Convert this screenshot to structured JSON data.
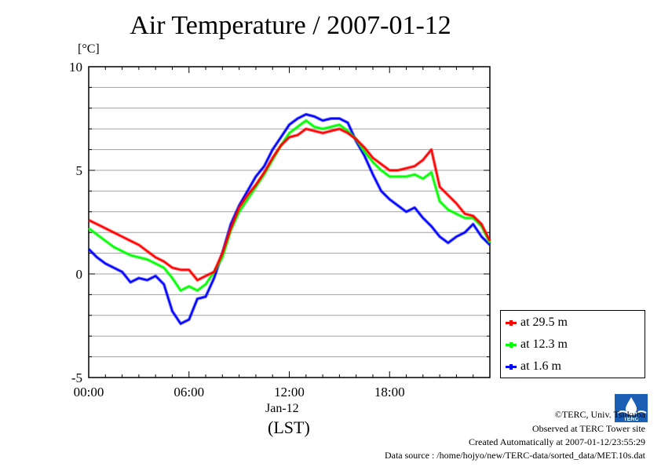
{
  "chart_data": {
    "type": "line",
    "title": "Air Temperature / 2007-01-12",
    "unit": "[°C]",
    "xlabel_date": "Jan-12",
    "xlabel": "(LST)",
    "xlim": [
      0,
      24
    ],
    "ylim": [
      -5,
      10
    ],
    "grid": true,
    "legend_position": "bottom-right",
    "x_ticks": [
      0,
      6,
      12,
      18
    ],
    "x_tick_labels": [
      "00:00",
      "06:00",
      "12:00",
      "18:00"
    ],
    "y_ticks": [
      -5,
      0,
      5,
      10
    ],
    "y_tick_labels": [
      "-5",
      "0",
      "5",
      "10"
    ],
    "x": [
      0,
      0.5,
      1,
      1.5,
      2,
      2.5,
      3,
      3.5,
      4,
      4.5,
      5,
      5.5,
      6,
      6.5,
      7,
      7.5,
      8,
      8.5,
      9,
      9.5,
      10,
      10.5,
      11,
      11.5,
      12,
      12.5,
      13,
      13.5,
      14,
      14.5,
      15,
      15.5,
      16,
      16.5,
      17,
      17.5,
      18,
      18.5,
      19,
      19.5,
      20,
      20.5,
      21,
      21.5,
      22,
      22.5,
      23,
      23.5,
      24
    ],
    "series": [
      {
        "name": "at 29.5 m",
        "color": "#ff0000",
        "values": [
          2.6,
          2.4,
          2.2,
          2.0,
          1.8,
          1.6,
          1.4,
          1.1,
          0.8,
          0.6,
          0.3,
          0.2,
          0.2,
          -0.3,
          -0.1,
          0.1,
          1.0,
          2.2,
          3.2,
          3.8,
          4.3,
          4.9,
          5.6,
          6.2,
          6.6,
          6.7,
          7.0,
          6.9,
          6.8,
          6.9,
          7.0,
          6.8,
          6.5,
          6.1,
          5.6,
          5.3,
          5.0,
          5.0,
          5.1,
          5.2,
          5.5,
          6.0,
          4.2,
          3.8,
          3.4,
          2.9,
          2.8,
          2.4,
          1.6
        ]
      },
      {
        "name": "at 12.3 m",
        "color": "#00ff00",
        "values": [
          2.2,
          1.9,
          1.6,
          1.3,
          1.1,
          0.9,
          0.8,
          0.7,
          0.5,
          0.3,
          -0.2,
          -0.8,
          -0.6,
          -0.8,
          -0.5,
          0.1,
          0.8,
          2.1,
          3.0,
          3.6,
          4.2,
          4.8,
          5.5,
          6.2,
          6.8,
          7.1,
          7.4,
          7.1,
          7.0,
          7.1,
          7.2,
          6.9,
          6.5,
          5.9,
          5.4,
          5.0,
          4.7,
          4.7,
          4.7,
          4.8,
          4.6,
          4.9,
          3.5,
          3.1,
          2.9,
          2.7,
          2.7,
          2.3,
          1.5
        ]
      },
      {
        "name": "at 1.6 m",
        "color": "#0000ff",
        "values": [
          1.2,
          0.8,
          0.5,
          0.3,
          0.1,
          -0.4,
          -0.2,
          -0.3,
          -0.1,
          -0.5,
          -1.8,
          -2.4,
          -2.2,
          -1.2,
          -1.1,
          -0.2,
          1.0,
          2.4,
          3.3,
          4.0,
          4.7,
          5.2,
          6.0,
          6.6,
          7.2,
          7.5,
          7.7,
          7.6,
          7.4,
          7.5,
          7.5,
          7.3,
          6.4,
          5.7,
          4.8,
          4.0,
          3.6,
          3.3,
          3.0,
          3.2,
          2.7,
          2.3,
          1.8,
          1.5,
          1.8,
          2.0,
          2.4,
          1.8,
          1.4
        ]
      }
    ]
  },
  "footer": {
    "copyright": "©TERC, Univ. Tsukuba",
    "observed": "Observed at TERC Tower site",
    "created": "Created Automatically at 2007-01-12/23:55:29",
    "source": "Data source : /home/hojyo/new/TERC-data/sorted_data/MET.10s.dat"
  },
  "logo": {
    "text": "TERC",
    "color": "#1a5fb4"
  }
}
